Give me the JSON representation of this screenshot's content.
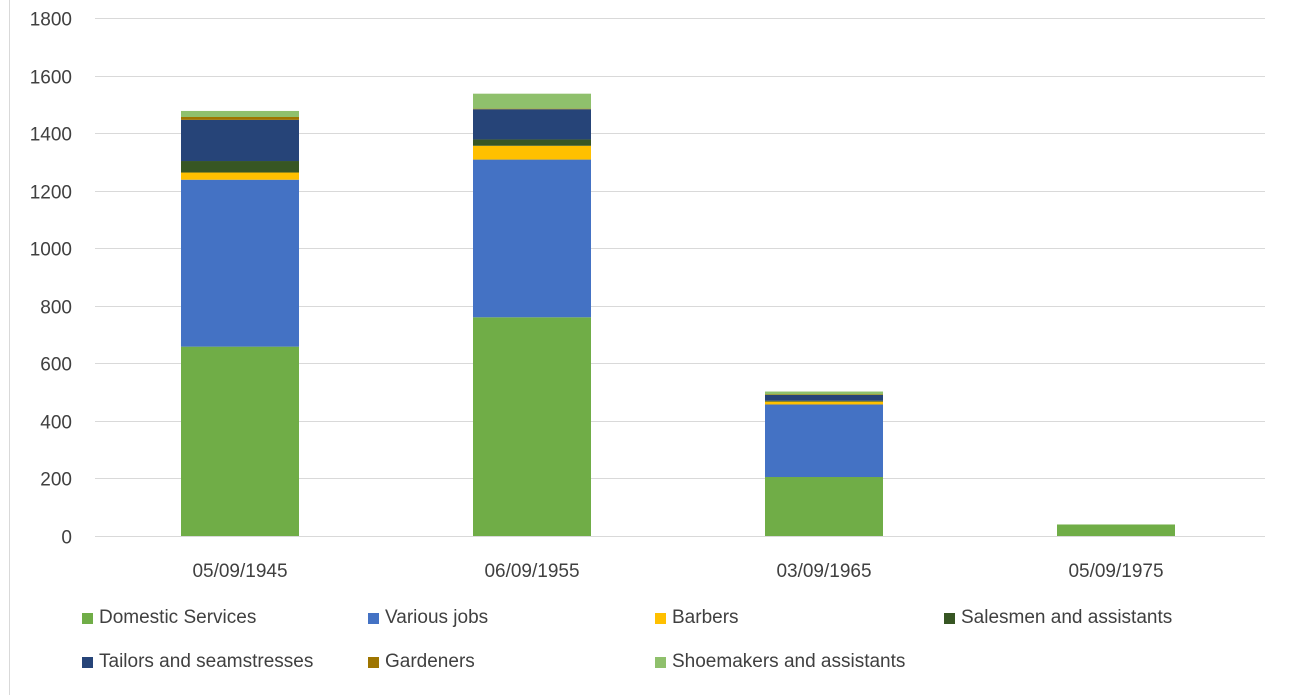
{
  "chart_data": {
    "type": "bar",
    "stacked": true,
    "title": "",
    "xlabel": "",
    "ylabel": "",
    "ylim": [
      0,
      1800
    ],
    "yticks": [
      0,
      200,
      400,
      600,
      800,
      1000,
      1200,
      1400,
      1600,
      1800
    ],
    "grid": true,
    "legend_position": "bottom",
    "categories": [
      "05/09/1945",
      "06/09/1955",
      "03/09/1965",
      "05/09/1975"
    ],
    "series": [
      {
        "name": "Domestic Services",
        "color": "#70ad47",
        "values": [
          658,
          760,
          205,
          40
        ]
      },
      {
        "name": "Various jobs",
        "color": "#4472c4",
        "values": [
          580,
          548,
          252,
          0
        ]
      },
      {
        "name": "Barbers",
        "color": "#ffc000",
        "values": [
          25,
          48,
          10,
          0
        ]
      },
      {
        "name": "Salesmen and assistants",
        "color": "#375623",
        "values": [
          40,
          22,
          3,
          0
        ]
      },
      {
        "name": "Tailors and seamstresses",
        "color": "#264478",
        "values": [
          143,
          105,
          20,
          0
        ]
      },
      {
        "name": "Gardeners",
        "color": "#9e7500",
        "values": [
          10,
          2,
          2,
          0
        ]
      },
      {
        "name": "Shoemakers and assistants",
        "color": "#8fc06c",
        "values": [
          21,
          52,
          10,
          0
        ]
      }
    ]
  }
}
